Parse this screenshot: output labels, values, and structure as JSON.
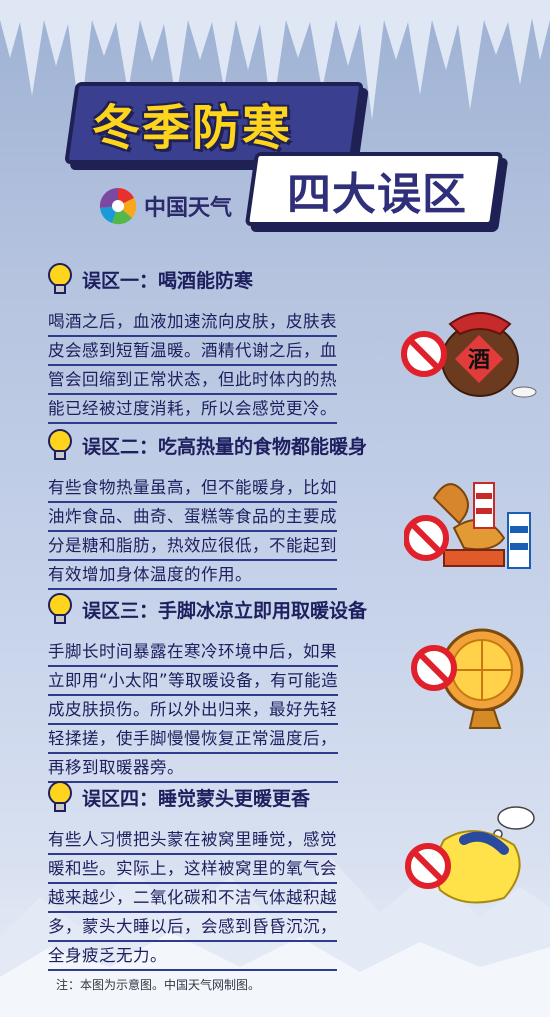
{
  "header": {
    "title": "冬季防寒",
    "subtitle": "四大误区",
    "logo_text": "中国天气"
  },
  "sections": [
    {
      "title": "误区一：喝酒能防寒",
      "lines": [
        "喝酒之后，血液加速流向皮肤，皮肤表",
        "皮会感到短暂温暖。酒精代谢之后，血",
        "管会回缩到正常状态，但此时体内的热",
        "能已经被过度消耗，所以会感觉更冷。"
      ],
      "illus_label": "酒"
    },
    {
      "title": "误区二：吃高热量的食物都能暖身",
      "lines": [
        "有些食物热量虽高，但不能暖身，比如",
        "油炸食品、曲奇、蛋糕等食品的主要成",
        "分是糖和脂肪，热效应很低，不能起到",
        "有效增加身体温度的作用。"
      ]
    },
    {
      "title": "误区三：手脚冰凉立即用取暖设备",
      "lines": [
        "手脚长时间暴露在寒冷环境中后，如果",
        "立即用“小太阳”等取暖设备，有可能造",
        "成皮肤损伤。所以外出归来，最好先轻",
        "轻揉搓，使手脚慢慢恢复正常温度后，",
        "再移到取暖器旁。"
      ]
    },
    {
      "title": "误区四：睡觉蒙头更暖更香",
      "lines": [
        "有些人习惯把头蒙在被窝里睡觉，感觉",
        "暖和些。实际上，这样被窝里的氧气会",
        "越来越少，二氧化碳和不洁气体越积越",
        "多，蒙头大睡以后，会感到昏昏沉沉，",
        "全身疲乏无力。"
      ]
    }
  ],
  "footer": {
    "note": "注：本图为示意图。中国天气网制图。"
  },
  "colors": {
    "accent_yellow": "#ffd41c",
    "navy": "#1d1f5e",
    "ban_red": "#e0202a"
  }
}
